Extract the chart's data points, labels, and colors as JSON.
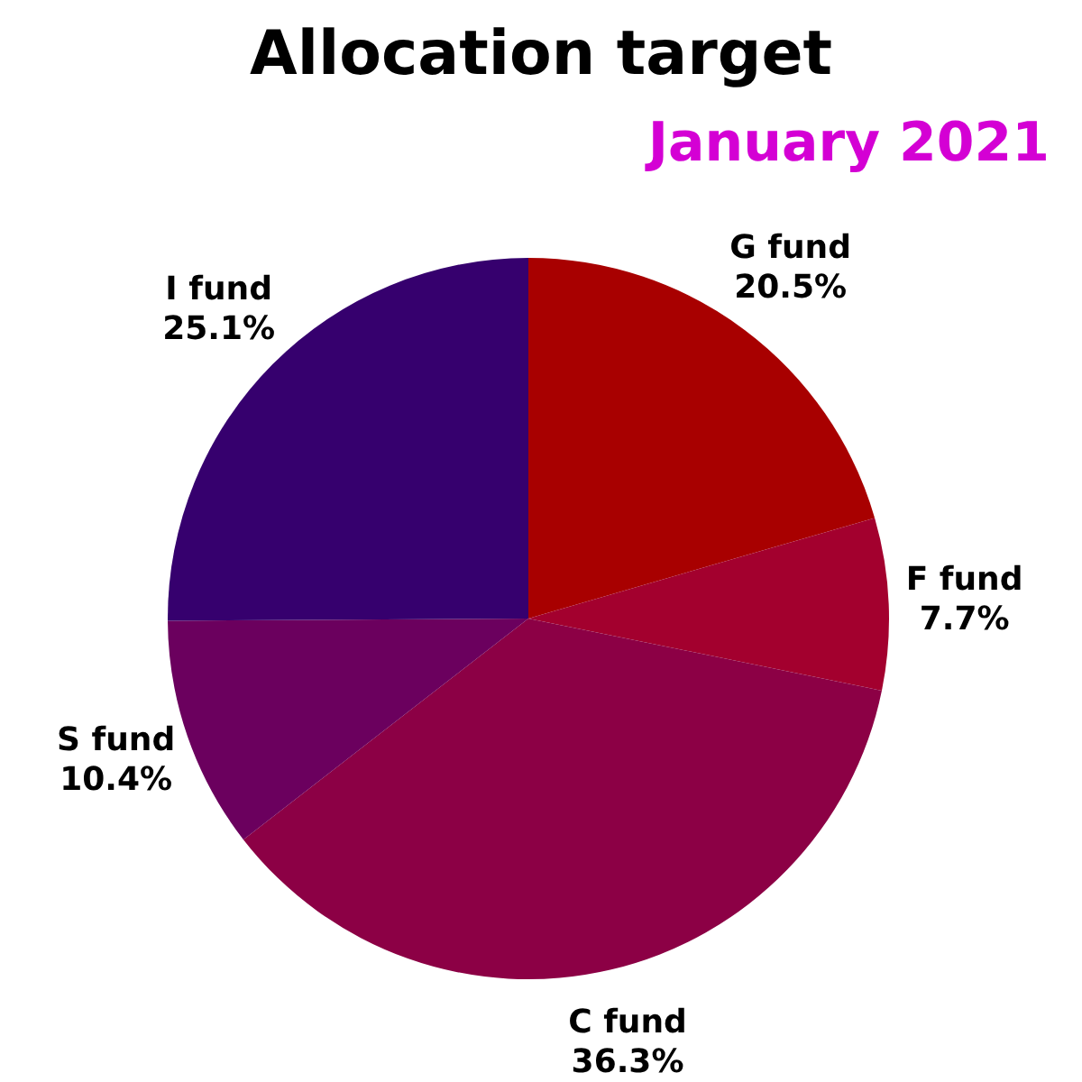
{
  "chart_data": {
    "type": "pie",
    "title": "Allocation target",
    "subtitle": "January 2021",
    "categories": [
      "G fund",
      "F fund",
      "C fund",
      "S fund",
      "I fund"
    ],
    "values": [
      20.5,
      7.7,
      36.3,
      10.4,
      25.1
    ],
    "colors": [
      "#a80000",
      "#a3002e",
      "#8c0045",
      "#6b005e",
      "#36006e"
    ],
    "value_labels": [
      "20.5%",
      "7.7%",
      "36.3%",
      "10.4%",
      "25.1%"
    ],
    "legend": false
  }
}
